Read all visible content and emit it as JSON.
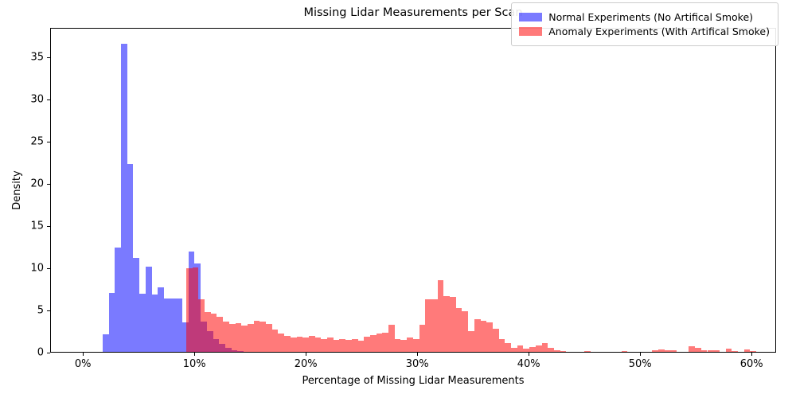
{
  "title": "Missing Lidar Measurements per Scan",
  "xlabel": "Percentage of Missing Lidar Measurements",
  "ylabel": "Density",
  "legend": {
    "items": [
      {
        "label": "Normal Experiments (No Artifical Smoke)",
        "color": "rgba(0,0,255,0.52)"
      },
      {
        "label": "Anomaly Experiments (With Artifical Smoke)",
        "color": "rgba(255,0,0,0.52)"
      }
    ]
  },
  "axes": {
    "xlim": [
      -2.94,
      62.2
    ],
    "ylim": [
      0,
      38.5
    ],
    "xticks": [
      {
        "value": 0,
        "label": "0%"
      },
      {
        "value": 10,
        "label": "10%"
      },
      {
        "value": 20,
        "label": "20%"
      },
      {
        "value": 30,
        "label": "30%"
      },
      {
        "value": 40,
        "label": "40%"
      },
      {
        "value": 50,
        "label": "50%"
      },
      {
        "value": 60,
        "label": "60%"
      }
    ],
    "yticks": [
      {
        "value": 0,
        "label": "0"
      },
      {
        "value": 5,
        "label": "5"
      },
      {
        "value": 10,
        "label": "10"
      },
      {
        "value": 15,
        "label": "15"
      },
      {
        "value": 20,
        "label": "20"
      },
      {
        "value": 25,
        "label": "25"
      },
      {
        "value": 30,
        "label": "30"
      },
      {
        "value": 35,
        "label": "35"
      }
    ]
  },
  "chart_data": {
    "type": "bar",
    "subtype": "overlaid-density-histograms",
    "x_units": "percent missing lidar measurements",
    "y_units": "density",
    "series": [
      {
        "name": "Normal Experiments (No Artifical Smoke)",
        "color": "rgba(0,0,255,0.52)",
        "bin_start": 1.7,
        "bin_width": 0.55,
        "densities": [
          2.1,
          7.0,
          12.4,
          36.5,
          22.3,
          11.1,
          6.9,
          10.1,
          6.8,
          7.6,
          6.3,
          6.3,
          6.3,
          3.5,
          11.9,
          10.5,
          3.6,
          2.5,
          1.5,
          0.9,
          0.45,
          0.2,
          0.1
        ]
      },
      {
        "name": "Anomaly Experiments (With Artifical Smoke)",
        "color": "rgba(255,0,0,0.52)",
        "bin_start": 9.2,
        "bin_width": 0.55,
        "densities": [
          9.9,
          10.0,
          6.2,
          4.7,
          4.5,
          4.2,
          3.6,
          3.3,
          3.4,
          3.1,
          3.3,
          3.7,
          3.6,
          3.3,
          2.6,
          2.2,
          1.85,
          1.7,
          1.75,
          1.7,
          1.85,
          1.7,
          1.55,
          1.7,
          1.4,
          1.5,
          1.4,
          1.55,
          1.3,
          1.75,
          2.0,
          2.2,
          2.3,
          3.2,
          1.5,
          1.4,
          1.7,
          1.5,
          3.2,
          6.2,
          6.2,
          8.5,
          6.6,
          6.5,
          5.2,
          4.8,
          2.5,
          3.9,
          3.7,
          3.5,
          2.7,
          1.5,
          1.05,
          0.45,
          0.75,
          0.4,
          0.55,
          0.75,
          1.0,
          0.45,
          0.2,
          0.1,
          0,
          0,
          0,
          0.12,
          0,
          0,
          0,
          0,
          0,
          0.1,
          0,
          0,
          0,
          0,
          0.15,
          0.25,
          0.2,
          0.2,
          0,
          0,
          0.65,
          0.45,
          0.2,
          0.2,
          0.2,
          0,
          0.35,
          0.1,
          0,
          0.25,
          0.1
        ]
      }
    ]
  }
}
